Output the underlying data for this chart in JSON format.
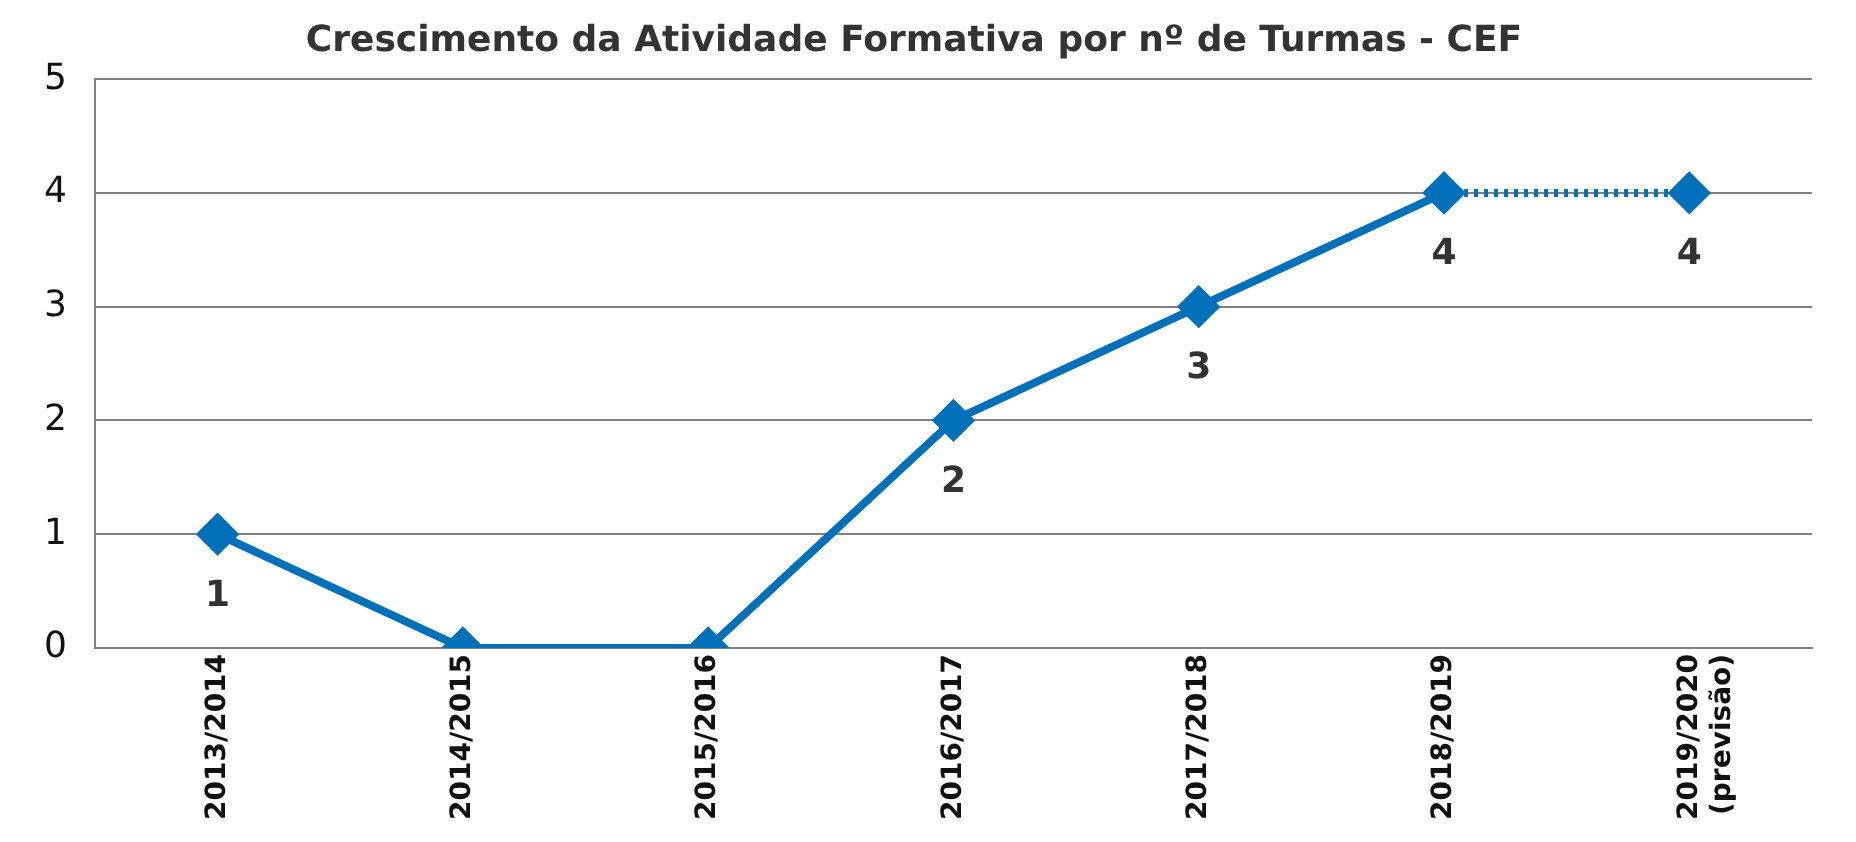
{
  "chart_data": {
    "type": "line",
    "title": "Crescimento da Atividade Formativa por nº de Turmas - CEF",
    "categories": [
      "2013/2014",
      "2014/2015",
      "2015/2016",
      "2016/2017",
      "2017/2018",
      "2018/2019",
      "2019/2020 (previsão)"
    ],
    "series": [
      {
        "color": "#0070b8",
        "values": [
          1,
          0,
          0,
          2,
          3,
          4,
          null
        ],
        "value_labels": [
          "1",
          null,
          null,
          "2",
          "3",
          "4",
          null
        ],
        "line_style": "solid"
      },
      {
        "color": "#0070b8",
        "values": [
          null,
          null,
          null,
          null,
          null,
          4,
          4
        ],
        "value_labels": [
          null,
          null,
          null,
          null,
          null,
          null,
          "4"
        ],
        "line_style": "dotted"
      }
    ],
    "ylim": [
      0,
      5
    ],
    "yticks": [
      0,
      1,
      2,
      3,
      4,
      5
    ],
    "grid": "y",
    "legend": false,
    "marker": "diamond"
  }
}
